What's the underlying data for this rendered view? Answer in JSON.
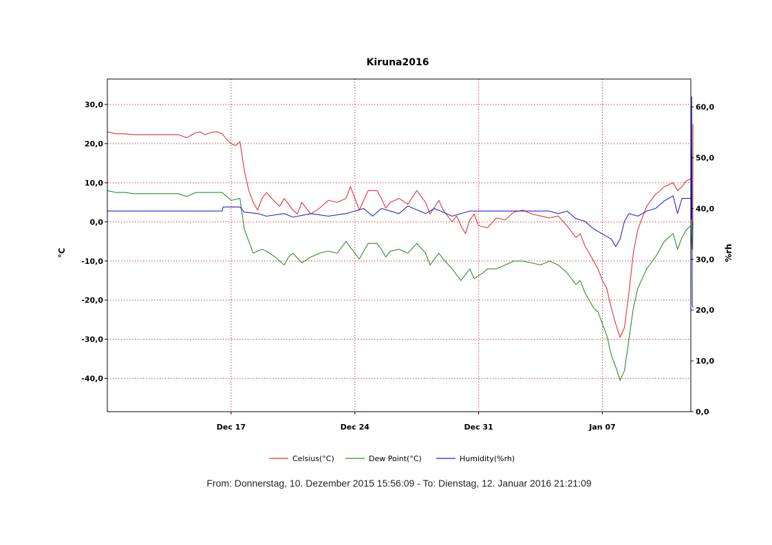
{
  "chart_data": {
    "type": "line",
    "title": "Kiruna2016",
    "ylabel": "°C",
    "y2label": "%rh",
    "ylim": [
      -48.5,
      36.5
    ],
    "y2lim": [
      0,
      65.5
    ],
    "xlim": [
      "2015-12-10T00:00",
      "2016-01-12T00:00"
    ],
    "x_ticks": [
      {
        "x": "2015-12-17",
        "label": "Dec 17"
      },
      {
        "x": "2015-12-24",
        "label": "Dec 24"
      },
      {
        "x": "2015-12-31",
        "label": "Dec 31"
      },
      {
        "x": "2016-01-07",
        "label": "Jan 07"
      }
    ],
    "y_ticks": [
      {
        "v": 30,
        "label": "30,0"
      },
      {
        "v": 20,
        "label": "20,0"
      },
      {
        "v": 10,
        "label": "10,0"
      },
      {
        "v": 0,
        "label": "0,0"
      },
      {
        "v": -10,
        "label": "-10,0"
      },
      {
        "v": -20,
        "label": "-20,0"
      },
      {
        "v": -30,
        "label": "-30,0"
      },
      {
        "v": -40,
        "label": "-40,0"
      }
    ],
    "y2_ticks": [
      {
        "v": 60,
        "label": "60,0"
      },
      {
        "v": 50,
        "label": "50,0"
      },
      {
        "v": 40,
        "label": "40,0"
      },
      {
        "v": 30,
        "label": "30,0"
      },
      {
        "v": 20,
        "label": "20,0"
      },
      {
        "v": 10,
        "label": "10,0"
      },
      {
        "v": 0,
        "label": "0,0"
      }
    ],
    "grid": true,
    "legend_position": "bottom",
    "series": [
      {
        "name": "Celsius(°C)",
        "color": "#e03030",
        "axis": "left",
        "points": [
          [
            "2015-12-10T00:00",
            23
          ],
          [
            "2015-12-10T12:00",
            22.5
          ],
          [
            "2015-12-11T00:00",
            22.5
          ],
          [
            "2015-12-11T12:00",
            22.3
          ],
          [
            "2015-12-13T00:00",
            22.3
          ],
          [
            "2015-12-13T12:00",
            22.3
          ],
          [
            "2015-12-14T00:00",
            22.3
          ],
          [
            "2015-12-14T12:00",
            21.5
          ],
          [
            "2015-12-15T00:00",
            22.8
          ],
          [
            "2015-12-15T06:00",
            23
          ],
          [
            "2015-12-15T12:00",
            22.3
          ],
          [
            "2015-12-16T00:00",
            23
          ],
          [
            "2015-12-16T06:00",
            23
          ],
          [
            "2015-12-16T12:00",
            22.5
          ],
          [
            "2015-12-16T18:00",
            21
          ],
          [
            "2015-12-17T00:00",
            20
          ],
          [
            "2015-12-17T06:00",
            19.5
          ],
          [
            "2015-12-17T12:00",
            20.5
          ],
          [
            "2015-12-17T18:00",
            13
          ],
          [
            "2015-12-18T00:00",
            8
          ],
          [
            "2015-12-18T06:00",
            5
          ],
          [
            "2015-12-18T12:00",
            3
          ],
          [
            "2015-12-18T18:00",
            6
          ],
          [
            "2015-12-19T00:00",
            7.5
          ],
          [
            "2015-12-19T12:00",
            5
          ],
          [
            "2015-12-19T18:00",
            4
          ],
          [
            "2015-12-20T00:00",
            6
          ],
          [
            "2015-12-20T12:00",
            3
          ],
          [
            "2015-12-20T18:00",
            2
          ],
          [
            "2015-12-21T00:00",
            5
          ],
          [
            "2015-12-21T12:00",
            2
          ],
          [
            "2015-12-22T00:00",
            3.5
          ],
          [
            "2015-12-22T12:00",
            5.5
          ],
          [
            "2015-12-23T00:00",
            5
          ],
          [
            "2015-12-23T12:00",
            6
          ],
          [
            "2015-12-23T18:00",
            9
          ],
          [
            "2015-12-24T00:00",
            6
          ],
          [
            "2015-12-24T06:00",
            3
          ],
          [
            "2015-12-24T12:00",
            5.5
          ],
          [
            "2015-12-24T18:00",
            8
          ],
          [
            "2015-12-25T06:00",
            8
          ],
          [
            "2015-12-25T12:00",
            6
          ],
          [
            "2015-12-25T18:00",
            3.5
          ],
          [
            "2015-12-26T00:00",
            5
          ],
          [
            "2015-12-26T12:00",
            6
          ],
          [
            "2015-12-27T00:00",
            4.5
          ],
          [
            "2015-12-27T12:00",
            8
          ],
          [
            "2015-12-28T00:00",
            5
          ],
          [
            "2015-12-28T06:00",
            2
          ],
          [
            "2015-12-28T18:00",
            5.5
          ],
          [
            "2015-12-29T00:00",
            3
          ],
          [
            "2015-12-29T12:00",
            0
          ],
          [
            "2015-12-29T18:00",
            1.5
          ],
          [
            "2015-12-30T00:00",
            -1
          ],
          [
            "2015-12-30T06:00",
            -3
          ],
          [
            "2015-12-30T12:00",
            0.5
          ],
          [
            "2015-12-30T18:00",
            2
          ],
          [
            "2015-12-31T00:00",
            -1
          ],
          [
            "2015-12-31T12:00",
            -1.5
          ],
          [
            "2016-01-01T00:00",
            1
          ],
          [
            "2016-01-01T12:00",
            0.5
          ],
          [
            "2016-01-02T00:00",
            2.5
          ],
          [
            "2016-01-02T12:00",
            3
          ],
          [
            "2016-01-03T00:00",
            2
          ],
          [
            "2016-01-03T12:00",
            1.5
          ],
          [
            "2016-01-04T00:00",
            1
          ],
          [
            "2016-01-04T12:00",
            1.5
          ],
          [
            "2016-01-05T00:00",
            -1
          ],
          [
            "2016-01-05T12:00",
            -4
          ],
          [
            "2016-01-05T18:00",
            -3
          ],
          [
            "2016-01-06T00:00",
            -6
          ],
          [
            "2016-01-06T12:00",
            -10
          ],
          [
            "2016-01-06T18:00",
            -12
          ],
          [
            "2016-01-07T00:00",
            -15
          ],
          [
            "2016-01-07T06:00",
            -17
          ],
          [
            "2016-01-07T12:00",
            -22
          ],
          [
            "2016-01-07T18:00",
            -26
          ],
          [
            "2016-01-08T00:00",
            -29.5
          ],
          [
            "2016-01-08T06:00",
            -27
          ],
          [
            "2016-01-08T12:00",
            -18
          ],
          [
            "2016-01-08T18:00",
            -8
          ],
          [
            "2016-01-09T00:00",
            -2
          ],
          [
            "2016-01-09T06:00",
            1
          ],
          [
            "2016-01-09T12:00",
            4
          ],
          [
            "2016-01-10T00:00",
            7
          ],
          [
            "2016-01-10T12:00",
            9
          ],
          [
            "2016-01-11T00:00",
            10
          ],
          [
            "2016-01-11T06:00",
            8
          ],
          [
            "2016-01-11T12:00",
            9
          ],
          [
            "2016-01-11T18:00",
            10.5
          ],
          [
            "2016-01-12T00:00",
            11
          ],
          [
            "2016-01-12T01:30",
            0
          ],
          [
            "2016-01-12T02:30",
            -7
          ],
          [
            "2016-01-12T03:00",
            25
          ]
        ]
      },
      {
        "name": "Dew Point(°C)",
        "color": "#2c8a2c",
        "axis": "left",
        "points": [
          [
            "2015-12-10T00:00",
            8
          ],
          [
            "2015-12-10T12:00",
            7.5
          ],
          [
            "2015-12-11T00:00",
            7.5
          ],
          [
            "2015-12-11T12:00",
            7.2
          ],
          [
            "2015-12-13T00:00",
            7.2
          ],
          [
            "2015-12-13T12:00",
            7.2
          ],
          [
            "2015-12-14T00:00",
            7.2
          ],
          [
            "2015-12-14T12:00",
            6.5
          ],
          [
            "2015-12-15T00:00",
            7.5
          ],
          [
            "2015-12-15T12:00",
            7.5
          ],
          [
            "2015-12-16T00:00",
            7.5
          ],
          [
            "2015-12-16T12:00",
            7.5
          ],
          [
            "2015-12-16T18:00",
            6.5
          ],
          [
            "2015-12-17T00:00",
            5.5
          ],
          [
            "2015-12-17T12:00",
            6
          ],
          [
            "2015-12-17T18:00",
            -2
          ],
          [
            "2015-12-18T00:00",
            -5
          ],
          [
            "2015-12-18T06:00",
            -8
          ],
          [
            "2015-12-18T18:00",
            -7
          ],
          [
            "2015-12-19T00:00",
            -7.5
          ],
          [
            "2015-12-19T12:00",
            -9
          ],
          [
            "2015-12-20T00:00",
            -11
          ],
          [
            "2015-12-20T06:00",
            -9
          ],
          [
            "2015-12-20T12:00",
            -8
          ],
          [
            "2015-12-21T00:00",
            -10.5
          ],
          [
            "2015-12-21T12:00",
            -9
          ],
          [
            "2015-12-22T00:00",
            -8
          ],
          [
            "2015-12-22T12:00",
            -7.5
          ],
          [
            "2015-12-23T00:00",
            -8
          ],
          [
            "2015-12-23T12:00",
            -5
          ],
          [
            "2015-12-24T00:00",
            -8
          ],
          [
            "2015-12-24T06:00",
            -9.5
          ],
          [
            "2015-12-24T12:00",
            -7.5
          ],
          [
            "2015-12-24T18:00",
            -5.5
          ],
          [
            "2015-12-25T06:00",
            -5.5
          ],
          [
            "2015-12-25T12:00",
            -7
          ],
          [
            "2015-12-25T18:00",
            -9
          ],
          [
            "2015-12-26T00:00",
            -7.5
          ],
          [
            "2015-12-26T12:00",
            -7
          ],
          [
            "2015-12-27T00:00",
            -8
          ],
          [
            "2015-12-27T12:00",
            -5.5
          ],
          [
            "2015-12-28T00:00",
            -8
          ],
          [
            "2015-12-28T06:00",
            -11
          ],
          [
            "2015-12-28T18:00",
            -8
          ],
          [
            "2015-12-29T00:00",
            -9.5
          ],
          [
            "2015-12-29T12:00",
            -12
          ],
          [
            "2015-12-30T00:00",
            -15
          ],
          [
            "2015-12-30T12:00",
            -12
          ],
          [
            "2015-12-30T18:00",
            -14.5
          ],
          [
            "2015-12-31T06:00",
            -13
          ],
          [
            "2015-12-31T12:00",
            -12
          ],
          [
            "2016-01-01T00:00",
            -12
          ],
          [
            "2016-01-01T12:00",
            -11
          ],
          [
            "2016-01-02T00:00",
            -10
          ],
          [
            "2016-01-02T12:00",
            -10
          ],
          [
            "2016-01-03T00:00",
            -10.5
          ],
          [
            "2016-01-03T12:00",
            -11
          ],
          [
            "2016-01-04T00:00",
            -10
          ],
          [
            "2016-01-04T12:00",
            -11
          ],
          [
            "2016-01-05T00:00",
            -13
          ],
          [
            "2016-01-05T12:00",
            -16
          ],
          [
            "2016-01-05T18:00",
            -15
          ],
          [
            "2016-01-06T00:00",
            -18
          ],
          [
            "2016-01-06T12:00",
            -22
          ],
          [
            "2016-01-06T18:00",
            -23
          ],
          [
            "2016-01-07T00:00",
            -26
          ],
          [
            "2016-01-07T06:00",
            -29
          ],
          [
            "2016-01-07T12:00",
            -34
          ],
          [
            "2016-01-07T18:00",
            -37
          ],
          [
            "2016-01-08T00:00",
            -40.5
          ],
          [
            "2016-01-08T06:00",
            -38
          ],
          [
            "2016-01-08T12:00",
            -30
          ],
          [
            "2016-01-08T18:00",
            -22
          ],
          [
            "2016-01-09T00:00",
            -17
          ],
          [
            "2016-01-09T12:00",
            -12
          ],
          [
            "2016-01-10T00:00",
            -9
          ],
          [
            "2016-01-10T12:00",
            -5
          ],
          [
            "2016-01-11T00:00",
            -3
          ],
          [
            "2016-01-11T06:00",
            -7
          ],
          [
            "2016-01-11T12:00",
            -4
          ],
          [
            "2016-01-11T18:00",
            -2
          ],
          [
            "2016-01-12T00:00",
            -1
          ],
          [
            "2016-01-12T01:30",
            -7
          ],
          [
            "2016-01-12T02:30",
            -4
          ],
          [
            "2016-01-12T03:00",
            0
          ]
        ]
      },
      {
        "name": "Humidity(%rh)",
        "color": "#2222cc",
        "axis": "right",
        "points": [
          [
            "2015-12-10T00:00",
            39.5
          ],
          [
            "2015-12-16T12:00",
            39.5
          ],
          [
            "2015-12-16T13:00",
            40.3
          ],
          [
            "2015-12-17T12:00",
            40.3
          ],
          [
            "2015-12-17T18:00",
            39.3
          ],
          [
            "2015-12-18T12:00",
            39
          ],
          [
            "2015-12-19T00:00",
            38.5
          ],
          [
            "2015-12-20T00:00",
            39
          ],
          [
            "2015-12-20T12:00",
            38.3
          ],
          [
            "2015-12-21T12:00",
            39
          ],
          [
            "2015-12-22T12:00",
            38.5
          ],
          [
            "2015-12-23T12:00",
            39
          ],
          [
            "2015-12-24T12:00",
            40
          ],
          [
            "2015-12-25T00:00",
            38.5
          ],
          [
            "2015-12-25T12:00",
            40
          ],
          [
            "2015-12-26T12:00",
            39
          ],
          [
            "2015-12-27T00:00",
            40.5
          ],
          [
            "2015-12-28T00:00",
            39
          ],
          [
            "2015-12-28T12:00",
            40
          ],
          [
            "2015-12-29T12:00",
            38.5
          ],
          [
            "2015-12-30T12:00",
            39.5
          ],
          [
            "2016-01-01T00:00",
            39.5
          ],
          [
            "2016-01-04T00:00",
            39.5
          ],
          [
            "2016-01-04T12:00",
            39
          ],
          [
            "2016-01-05T00:00",
            39.5
          ],
          [
            "2016-01-05T12:00",
            38
          ],
          [
            "2016-01-06T00:00",
            37.5
          ],
          [
            "2016-01-06T12:00",
            36
          ],
          [
            "2016-01-07T00:00",
            35
          ],
          [
            "2016-01-07T12:00",
            34
          ],
          [
            "2016-01-07T18:00",
            32.5
          ],
          [
            "2016-01-08T00:00",
            34
          ],
          [
            "2016-01-08T06:00",
            37.5
          ],
          [
            "2016-01-08T12:00",
            39
          ],
          [
            "2016-01-09T00:00",
            38.5
          ],
          [
            "2016-01-09T12:00",
            39.5
          ],
          [
            "2016-01-10T00:00",
            40
          ],
          [
            "2016-01-10T12:00",
            41.5
          ],
          [
            "2016-01-11T00:00",
            42.5
          ],
          [
            "2016-01-11T06:00",
            39
          ],
          [
            "2016-01-11T12:00",
            42
          ],
          [
            "2016-01-11T18:00",
            42
          ],
          [
            "2016-01-12T00:00",
            42
          ],
          [
            "2016-01-12T00:40",
            38
          ],
          [
            "2016-01-12T01:20",
            62
          ],
          [
            "2016-01-12T02:00",
            21
          ],
          [
            "2016-01-12T03:00",
            20.5
          ]
        ]
      }
    ]
  },
  "footer": {
    "text": "From: Donnerstag, 10. Dezember 2015 15:56:09  -  To: Dienstag, 12. Januar 2016 21:21:09"
  },
  "colors": {
    "grid": "#cc3b3b",
    "frame": "#000000"
  }
}
